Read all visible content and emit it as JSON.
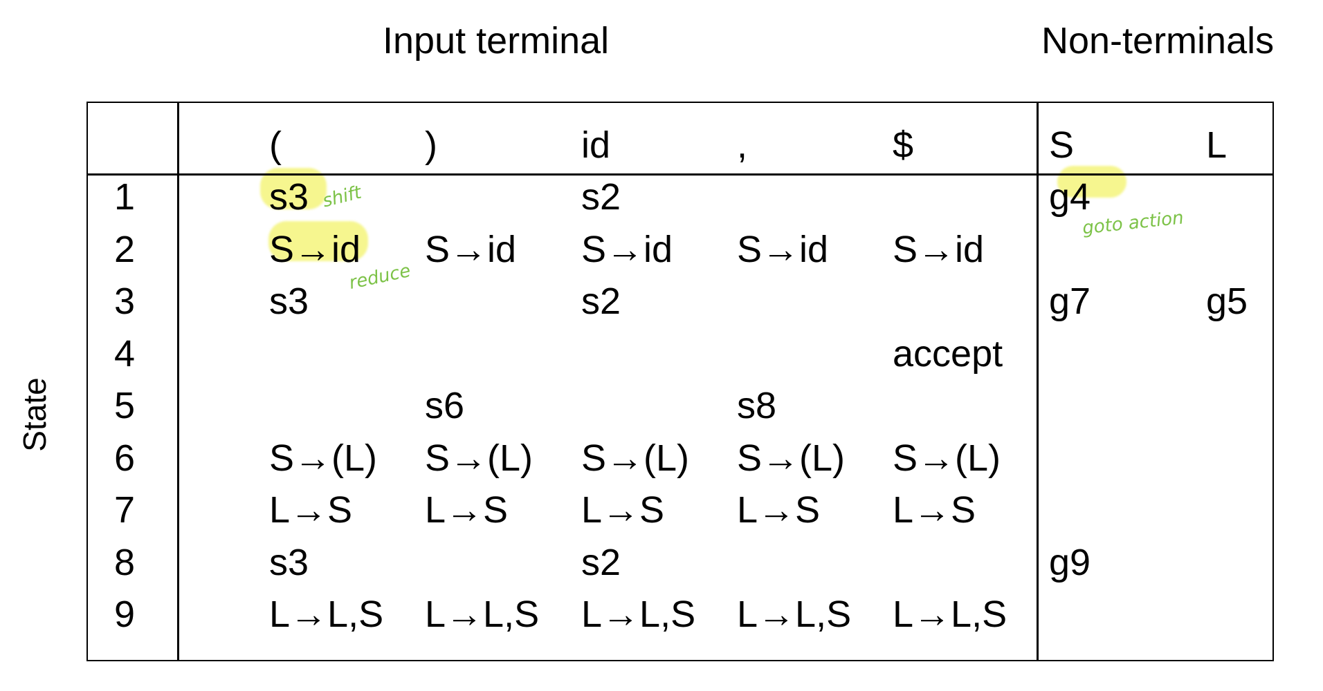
{
  "headers": {
    "input": "Input terminal",
    "nonterminals": "Non-terminals",
    "state": "State"
  },
  "columns": [
    "(",
    ")",
    "id",
    ",",
    "$",
    "S",
    "L"
  ],
  "states": [
    "1",
    "2",
    "3",
    "4",
    "5",
    "6",
    "7",
    "8",
    "9"
  ],
  "rows": [
    [
      "s3",
      "",
      "s2",
      "",
      "",
      "g4",
      ""
    ],
    [
      "S→id",
      "S→id",
      "S→id",
      "S→id",
      "S→id",
      "",
      ""
    ],
    [
      "s3",
      "",
      "s2",
      "",
      "",
      "g7",
      "g5"
    ],
    [
      "",
      "",
      "",
      "",
      "accept",
      "",
      ""
    ],
    [
      "",
      "s6",
      "",
      "s8",
      "",
      "",
      ""
    ],
    [
      "S→(L)",
      "S→(L)",
      "S→(L)",
      "S→(L)",
      "S→(L)",
      "",
      ""
    ],
    [
      "L→S",
      "L→S",
      "L→S",
      "L→S",
      "L→S",
      "",
      ""
    ],
    [
      "s3",
      "",
      "s2",
      "",
      "",
      "g9",
      ""
    ],
    [
      "L→L,S",
      "L→L,S",
      "L→L,S",
      "L→L,S",
      "L→L,S",
      "",
      ""
    ]
  ],
  "annotations": {
    "shift": "shift",
    "reduce": "reduce",
    "goto": "goto action"
  },
  "colors": {
    "highlight": "#f3f36a",
    "annotation_ink": "#7cc247",
    "grid": "#000000"
  }
}
